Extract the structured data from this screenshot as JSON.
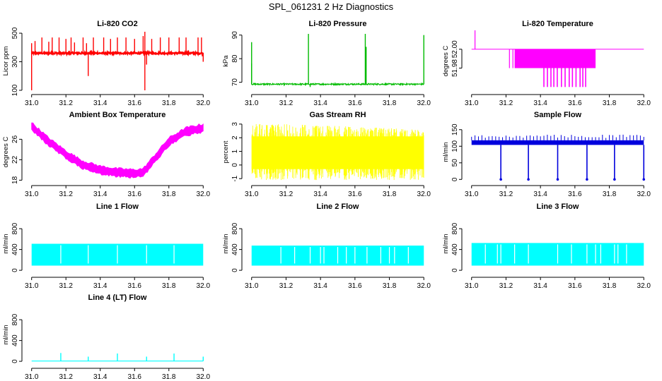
{
  "figure_title": "SPL_061231  2 Hz Diagnostics",
  "colors": {
    "co2": "#ff0000",
    "pressure": "#00bb00",
    "temperature": "#ff00ff",
    "ambient": "#ff00ff",
    "rh": "#ffff00",
    "sample_flow": "#0000dd",
    "line_flow": "#00ffff",
    "axis": "#000000"
  },
  "chart_data": [
    {
      "id": "li820-co2",
      "type": "line",
      "title": "Li-820 CO2",
      "ylabel": "Licor ppm",
      "x": [
        31.0,
        32.0
      ],
      "xticks": [
        "31.0",
        "31.2",
        "31.4",
        "31.6",
        "31.8",
        "32.0"
      ],
      "ylim": [
        90,
        520
      ],
      "yticks": [
        100,
        300,
        500
      ],
      "ytick_labels": [
        "100",
        "300",
        "500"
      ],
      "baseline": 360,
      "noise": 6,
      "spikes": [
        [
          31.0,
          100
        ],
        [
          31.0,
          430
        ],
        [
          31.02,
          445
        ],
        [
          31.06,
          470
        ],
        [
          31.1,
          440
        ],
        [
          31.12,
          470
        ],
        [
          31.16,
          470
        ],
        [
          31.2,
          460
        ],
        [
          31.23,
          470
        ],
        [
          31.25,
          435
        ],
        [
          31.3,
          470
        ],
        [
          31.32,
          430
        ],
        [
          31.33,
          200
        ],
        [
          31.36,
          470
        ],
        [
          31.42,
          470
        ],
        [
          31.46,
          460
        ],
        [
          31.5,
          470
        ],
        [
          31.55,
          470
        ],
        [
          31.6,
          460
        ],
        [
          31.65,
          480
        ],
        [
          31.66,
          510
        ],
        [
          31.66,
          100
        ],
        [
          31.67,
          280
        ],
        [
          31.7,
          460
        ],
        [
          31.75,
          470
        ],
        [
          31.8,
          470
        ],
        [
          31.86,
          470
        ],
        [
          31.9,
          470
        ],
        [
          31.97,
          470
        ],
        [
          31.99,
          470
        ],
        [
          32.0,
          300
        ]
      ],
      "color_key": "co2"
    },
    {
      "id": "li820-pressure",
      "type": "line",
      "title": "Li-820 Pressure",
      "ylabel": "kPa",
      "x": [
        31.0,
        32.0
      ],
      "xticks": [
        "31.0",
        "31.2",
        "31.4",
        "31.6",
        "31.8",
        "32.0"
      ],
      "ylim": [
        66,
        92
      ],
      "yticks": [
        70,
        80,
        90
      ],
      "ytick_labels": [
        "70",
        "80",
        "90"
      ],
      "baseline": 69.2,
      "noise": 0.3,
      "spikes": [
        [
          31.0,
          87
        ],
        [
          31.0,
          78
        ],
        [
          31.33,
          90.5
        ],
        [
          31.34,
          68
        ],
        [
          31.66,
          90.5
        ],
        [
          31.665,
          85
        ],
        [
          32.0,
          90
        ]
      ],
      "color_key": "pressure"
    },
    {
      "id": "li820-temperature",
      "type": "line",
      "title": "Li-820 Temperature",
      "ylabel": "degrees C",
      "x": [
        31.0,
        32.0
      ],
      "xticks": [
        "31.0",
        "31.2",
        "31.4",
        "31.6",
        "31.8",
        "32.0"
      ],
      "ylim": [
        51.955,
        52.02
      ],
      "yticks": [
        51.98,
        52.0
      ],
      "ytick_labels": [
        "51.98",
        "52.00"
      ],
      "baseline": 52.0,
      "block_low": 51.98,
      "block_range": [
        31.25,
        31.72
      ],
      "deep_low": 51.96,
      "deep_range": [
        31.42,
        31.67
      ],
      "spikes": [
        [
          31.02,
          52.02
        ],
        [
          31.24,
          51.98
        ],
        [
          31.22,
          51.98
        ]
      ],
      "color_key": "temperature"
    },
    {
      "id": "ambient-box-temperature",
      "type": "area",
      "title": "Ambient Box Temperature",
      "ylabel": "degrees C",
      "x": [
        31.0,
        31.1,
        31.2,
        31.3,
        31.4,
        31.5,
        31.6,
        31.65,
        31.7,
        31.8,
        31.9,
        32.0
      ],
      "xticks": [
        "31.0",
        "31.2",
        "31.4",
        "31.6",
        "31.8",
        "32.0"
      ],
      "ylim": [
        17.5,
        29.5
      ],
      "yticks": [
        18,
        22,
        26
      ],
      "ytick_labels": [
        "18",
        "22",
        "26"
      ],
      "values": [
        28.5,
        25.5,
        23.0,
        21.0,
        20.0,
        19.5,
        19.3,
        19.5,
        21.5,
        25.5,
        27.5,
        28.2
      ],
      "noise": 0.9,
      "color_key": "ambient"
    },
    {
      "id": "gas-stream-rh",
      "type": "area",
      "title": "Gas Stream RH",
      "ylabel": "percent",
      "x": [
        31.0,
        32.0
      ],
      "xticks": [
        "31.0",
        "31.2",
        "31.4",
        "31.6",
        "31.8",
        "32.0"
      ],
      "ylim": [
        -1.3,
        3.2
      ],
      "yticks": [
        -1,
        0,
        1,
        2,
        3
      ],
      "ytick_labels": [
        "-1",
        "0",
        "1",
        "2",
        "3"
      ],
      "band_low": -0.3,
      "band_high": 2.1,
      "min_extreme": -1.1,
      "max_extreme": 3.0,
      "color_key": "rh"
    },
    {
      "id": "sample-flow",
      "type": "line",
      "title": "Sample Flow",
      "ylabel": "ml/min",
      "x": [
        31.0,
        32.0
      ],
      "xticks": [
        "31.0",
        "31.2",
        "31.4",
        "31.6",
        "31.8",
        "32.0"
      ],
      "ylim": [
        -10,
        175
      ],
      "yticks": [
        0,
        50,
        100,
        150
      ],
      "ytick_labels": [
        "0",
        "50",
        "100",
        "150"
      ],
      "band_low": 104,
      "band_high": 118,
      "spike_top": 135,
      "drops": [
        31.17,
        31.33,
        31.5,
        31.67,
        31.83,
        32.0
      ],
      "color_key": "sample_flow"
    },
    {
      "id": "line-1-flow",
      "type": "area",
      "title": "Line 1 Flow",
      "ylabel": "ml/min",
      "x": [
        31.0,
        32.0
      ],
      "xticks": [
        "31.0",
        "31.2",
        "31.4",
        "31.6",
        "31.8",
        "32.0"
      ],
      "ylim": [
        -80,
        1100
      ],
      "yticks": [
        0,
        400,
        800
      ],
      "ytick_labels": [
        "0",
        "400",
        "800"
      ],
      "band_low": 90,
      "band_high": 510,
      "gaps": [
        31.17,
        31.33,
        31.5,
        31.67,
        31.83
      ],
      "color_key": "line_flow"
    },
    {
      "id": "line-2-flow",
      "type": "area",
      "title": "Line 2 Flow",
      "ylabel": "ml/min",
      "x": [
        31.0,
        32.0
      ],
      "xticks": [
        "31.0",
        "31.2",
        "31.4",
        "31.6",
        "31.8",
        "32.0"
      ],
      "ylim": [
        -80,
        1100
      ],
      "yticks": [
        0,
        400,
        800
      ],
      "ytick_labels": [
        "0",
        "400",
        "800"
      ],
      "band_low": 90,
      "band_high": 475,
      "gaps": [
        31.17,
        31.25,
        31.34,
        31.4,
        31.42,
        31.5,
        31.55,
        31.6,
        31.67,
        31.75,
        31.8,
        31.83,
        31.91
      ],
      "color_key": "line_flow"
    },
    {
      "id": "line-3-flow",
      "type": "area",
      "title": "Line 3 Flow",
      "ylabel": "ml/min",
      "x": [
        31.0,
        32.0
      ],
      "xticks": [
        "31.0",
        "31.2",
        "31.4",
        "31.6",
        "31.8",
        "32.0"
      ],
      "ylim": [
        -80,
        1100
      ],
      "yticks": [
        0,
        400,
        800
      ],
      "ytick_labels": [
        "0",
        "400",
        "800"
      ],
      "band_low": 90,
      "band_high": 525,
      "gaps": [
        31.08,
        31.15,
        31.17,
        31.25,
        31.33,
        31.5,
        31.58,
        31.67,
        31.72,
        31.75,
        31.83,
        31.85,
        31.9
      ],
      "color_key": "line_flow"
    },
    {
      "id": "line-4-lt-flow",
      "type": "line",
      "title": "Line 4 (LT) Flow",
      "ylabel": "ml/min",
      "x": [
        31.0,
        32.0
      ],
      "xticks": [
        "31.0",
        "31.2",
        "31.4",
        "31.6",
        "31.8",
        "32.0"
      ],
      "ylim": [
        -80,
        1100
      ],
      "yticks": [
        0,
        400,
        800
      ],
      "ytick_labels": [
        "0",
        "400",
        "800"
      ],
      "baseline": 5,
      "spikes": [
        [
          31.17,
          160
        ],
        [
          31.33,
          90
        ],
        [
          31.5,
          150
        ],
        [
          31.67,
          90
        ],
        [
          31.83,
          150
        ],
        [
          32.0,
          90
        ]
      ],
      "color_key": "line_flow"
    }
  ]
}
